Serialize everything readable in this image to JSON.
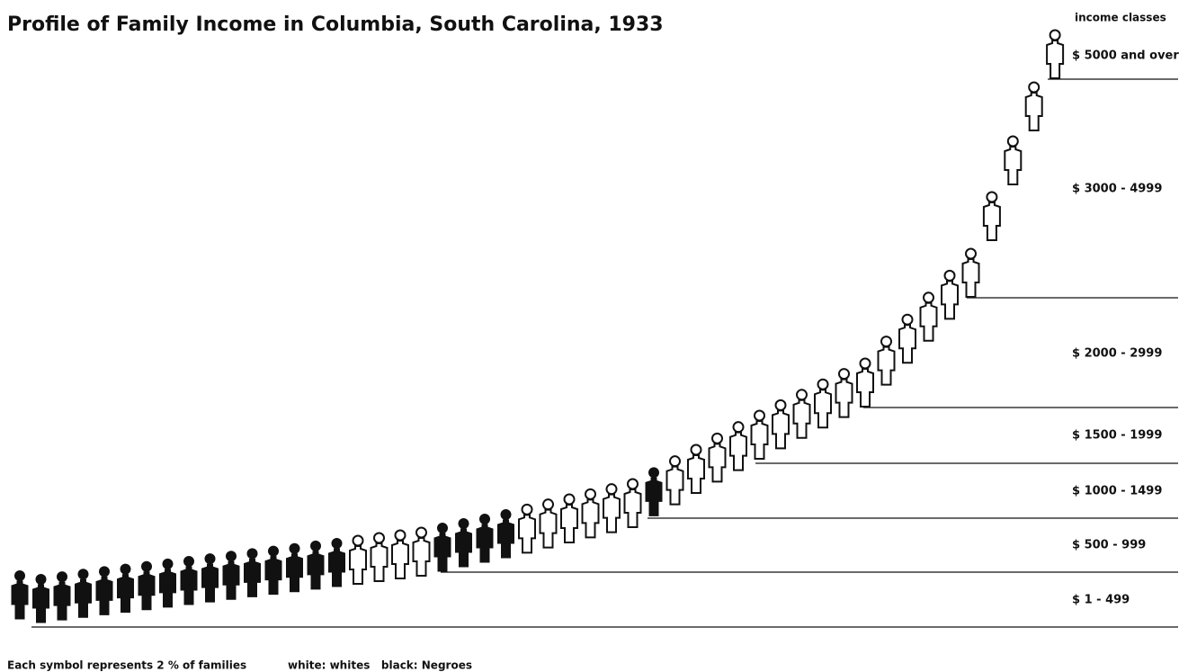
{
  "chart_data": {
    "type": "pictogram",
    "title": "Profile of Family Income in Columbia, South Carolina, 1933",
    "footnote": "Each symbol represents 2 % of families",
    "legend": "white: whites   black: Negroes",
    "bands_title": "income classes",
    "bands": [
      "$ 5000 and over",
      "$ 3000 - 4999",
      "$ 2000 - 2999",
      "$ 1500 - 1999",
      "$ 1000 - 1499",
      "$ 500 - 999",
      "$ 1 - 499"
    ],
    "symbols": [
      "black",
      "black",
      "black",
      "black",
      "black",
      "black",
      "black",
      "black",
      "black",
      "black",
      "black",
      "black",
      "black",
      "black",
      "black",
      "black",
      "white",
      "white",
      "white",
      "white",
      "black",
      "black",
      "black",
      "black",
      "white",
      "white",
      "white",
      "white",
      "white",
      "white",
      "black",
      "white",
      "white",
      "white",
      "white",
      "white",
      "white",
      "white",
      "white",
      "white",
      "white",
      "white",
      "white",
      "white",
      "white",
      "white",
      "white",
      "white",
      "white",
      "white"
    ]
  }
}
